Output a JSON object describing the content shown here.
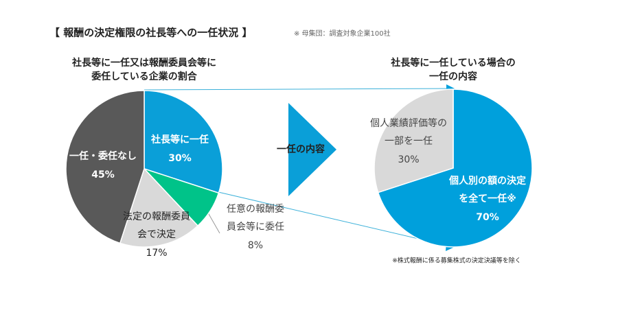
{
  "title": "【 報酬の決定権限の社長等への一任状況 】",
  "subtitle": "※ 母集団：調査対象企業100社",
  "center_label": "一任の内容",
  "footnote": "※株式報酬に係る募集株式の決定決議等を除く",
  "chart_data": [
    {
      "type": "pie",
      "title": [
        "社長等に一任又は報酬委員会等に",
        "委任している企業の割合"
      ],
      "categories": [
        [
          "社長等に一任"
        ],
        [
          "任意の報酬委",
          "員会等に委任"
        ],
        [
          "法定の報酬委員",
          "会で決定"
        ],
        [
          "一任・委任なし"
        ]
      ],
      "values": [
        30,
        8,
        17,
        45
      ],
      "value_labels": [
        "30%",
        "8%",
        "17%",
        "45%"
      ],
      "colors": [
        "#0a9fd8",
        "#00c389",
        "#d9d9d9",
        "#595959"
      ]
    },
    {
      "type": "pie",
      "title": [
        "社長等に一任している場合の",
        "一任の内容"
      ],
      "categories": [
        [
          "個人別の額の決定",
          "を全て一任※"
        ],
        [
          "個人業績評価等の",
          "一部を一任"
        ]
      ],
      "values": [
        70,
        30
      ],
      "value_labels": [
        "70%",
        "30%"
      ],
      "colors": [
        "#00a0dc",
        "#d9d9d9"
      ]
    }
  ]
}
